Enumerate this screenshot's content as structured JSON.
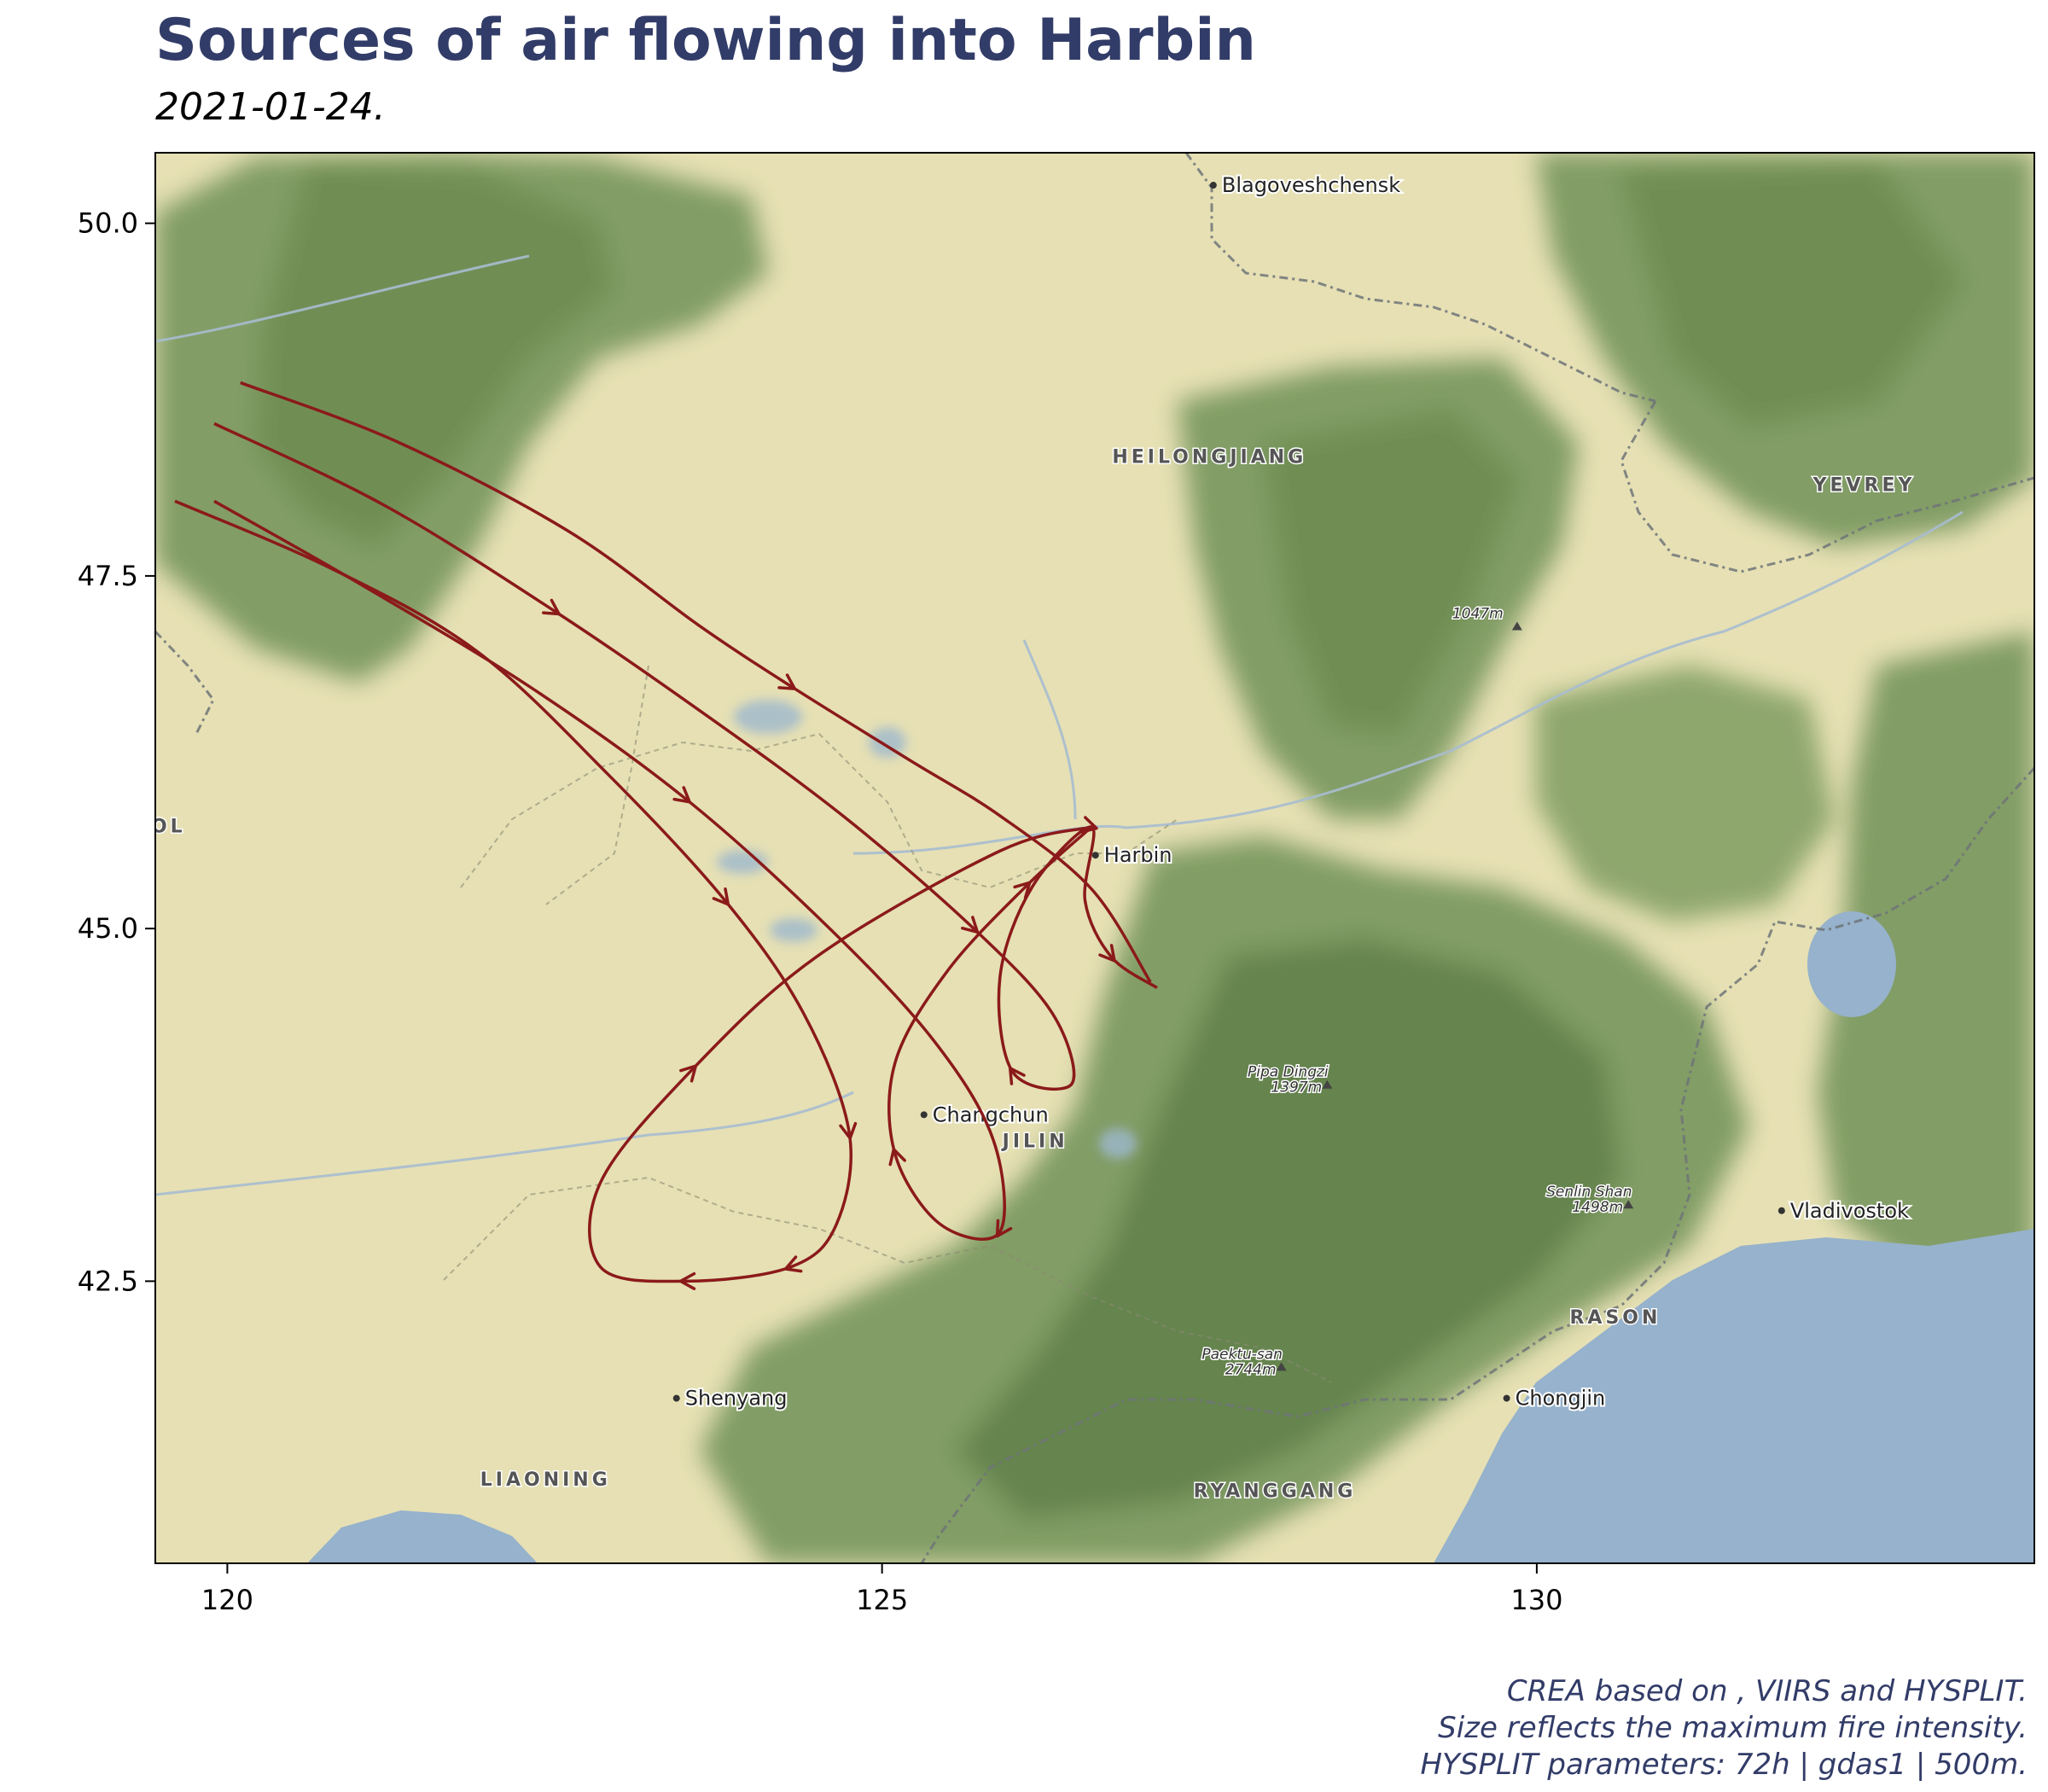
{
  "title": "Sources of air flowing into Harbin",
  "subtitle": "2021-01-24.",
  "caption": [
    "CREA based on , VIIRS and HYSPLIT.",
    "Size reflects the maximum fire intensity.",
    "HYSPLIT parameters: 72h | gdas1 | 500m."
  ],
  "map": {
    "lon_range": [
      119.45,
      133.8
    ],
    "lat_range": [
      40.5,
      50.5
    ],
    "x_ticks": [
      {
        "value": 120,
        "label": "120"
      },
      {
        "value": 125,
        "label": "125"
      },
      {
        "value": 130,
        "label": "130"
      }
    ],
    "y_ticks": [
      {
        "value": 50.0,
        "label": "50.0"
      },
      {
        "value": 47.5,
        "label": "47.5"
      },
      {
        "value": 45.0,
        "label": "45.0"
      },
      {
        "value": 42.5,
        "label": "42.5"
      }
    ],
    "colors": {
      "lowland": "#e6e0b4",
      "mountain": "#7a9860",
      "mountain_dark": "#5d7d48",
      "water": "#96b2cc",
      "border": "#6e7478",
      "trajectory": "#8b1a1a"
    },
    "places": [
      {
        "name": "Blagoveshchensk",
        "lon": 127.53,
        "lat": 50.27,
        "type": "city"
      },
      {
        "name": "Harbin",
        "lon": 126.63,
        "lat": 45.52,
        "type": "city"
      },
      {
        "name": "Changchun",
        "lon": 125.32,
        "lat": 43.68,
        "type": "city"
      },
      {
        "name": "Shenyang",
        "lon": 123.43,
        "lat": 41.67,
        "type": "city"
      },
      {
        "name": "Vladivostok",
        "lon": 131.87,
        "lat": 43.0,
        "type": "city"
      },
      {
        "name": "Chongjin",
        "lon": 129.77,
        "lat": 41.67,
        "type": "city"
      }
    ],
    "regions": [
      {
        "name": "HEILONGJIANG",
        "lon": 127.5,
        "lat": 48.3
      },
      {
        "name": "YEVREY",
        "lon": 132.5,
        "lat": 48.1
      },
      {
        "name": "JILIN",
        "lon": 126.17,
        "lat": 43.45
      },
      {
        "name": "LIAONING",
        "lon": 122.43,
        "lat": 41.05
      },
      {
        "name": "RASON",
        "lon": 130.6,
        "lat": 42.2
      },
      {
        "name": "RYANGGANG",
        "lon": 128.0,
        "lat": 40.97
      },
      {
        "name": "OL",
        "lon": 119.55,
        "lat": 45.68
      }
    ],
    "peaks": [
      {
        "name": "1047m",
        "elev": "",
        "lon": 129.55,
        "lat": 47.2
      },
      {
        "name": "Pipa Dingzi",
        "elev": "1397m",
        "lon": 128.1,
        "lat": 43.95
      },
      {
        "name": "Senlin Shan",
        "elev": "1498m",
        "lon": 130.4,
        "lat": 43.1
      },
      {
        "name": "Paektu-san",
        "elev": "2744m",
        "lon": 127.75,
        "lat": 41.95
      }
    ]
  },
  "trajectories": [
    {
      "points": [
        [
          120.1,
          48.87
        ],
        [
          121.3,
          48.45
        ],
        [
          122.6,
          47.82
        ],
        [
          123.6,
          47.15
        ],
        [
          124.3,
          46.72
        ],
        [
          125.2,
          46.2
        ],
        [
          125.9,
          45.8
        ],
        [
          126.6,
          45.28
        ],
        [
          127.05,
          44.62
        ]
      ],
      "arrows": [
        4
      ]
    },
    {
      "points": [
        [
          119.9,
          48.58
        ],
        [
          121.2,
          48.0
        ],
        [
          122.5,
          47.25
        ],
        [
          123.6,
          46.55
        ],
        [
          124.7,
          45.8
        ],
        [
          125.7,
          45.0
        ],
        [
          126.3,
          44.4
        ],
        [
          126.45,
          43.9
        ],
        [
          126.0,
          43.98
        ],
        [
          125.9,
          44.65
        ],
        [
          126.15,
          45.3
        ],
        [
          126.6,
          45.72
        ],
        [
          126.55,
          45.2
        ],
        [
          126.75,
          44.8
        ],
        [
          127.1,
          44.58
        ]
      ],
      "arrows": [
        2,
        5,
        8,
        11,
        13
      ]
    },
    {
      "points": [
        [
          119.6,
          48.03
        ],
        [
          120.8,
          47.55
        ],
        [
          121.9,
          46.97
        ],
        [
          122.9,
          46.1
        ],
        [
          123.8,
          45.2
        ],
        [
          124.4,
          44.4
        ],
        [
          124.75,
          43.55
        ],
        [
          124.65,
          42.9
        ],
        [
          124.3,
          42.6
        ],
        [
          123.5,
          42.5
        ],
        [
          122.85,
          42.6
        ],
        [
          122.85,
          43.2
        ],
        [
          123.55,
          44.0
        ],
        [
          124.5,
          44.8
        ],
        [
          125.9,
          45.55
        ],
        [
          126.6,
          45.72
        ]
      ],
      "arrows": [
        4,
        6,
        8,
        9,
        12
      ]
    },
    {
      "points": [
        [
          119.9,
          48.03
        ],
        [
          121.0,
          47.45
        ],
        [
          122.3,
          46.72
        ],
        [
          123.5,
          45.92
        ],
        [
          124.6,
          45.0
        ],
        [
          125.4,
          44.2
        ],
        [
          125.85,
          43.5
        ],
        [
          125.9,
          42.85
        ],
        [
          125.45,
          42.9
        ],
        [
          125.1,
          43.4
        ],
        [
          125.1,
          44.05
        ],
        [
          125.5,
          44.7
        ],
        [
          126.1,
          45.3
        ],
        [
          126.6,
          45.72
        ]
      ],
      "arrows": [
        3,
        7,
        9,
        12
      ]
    }
  ]
}
